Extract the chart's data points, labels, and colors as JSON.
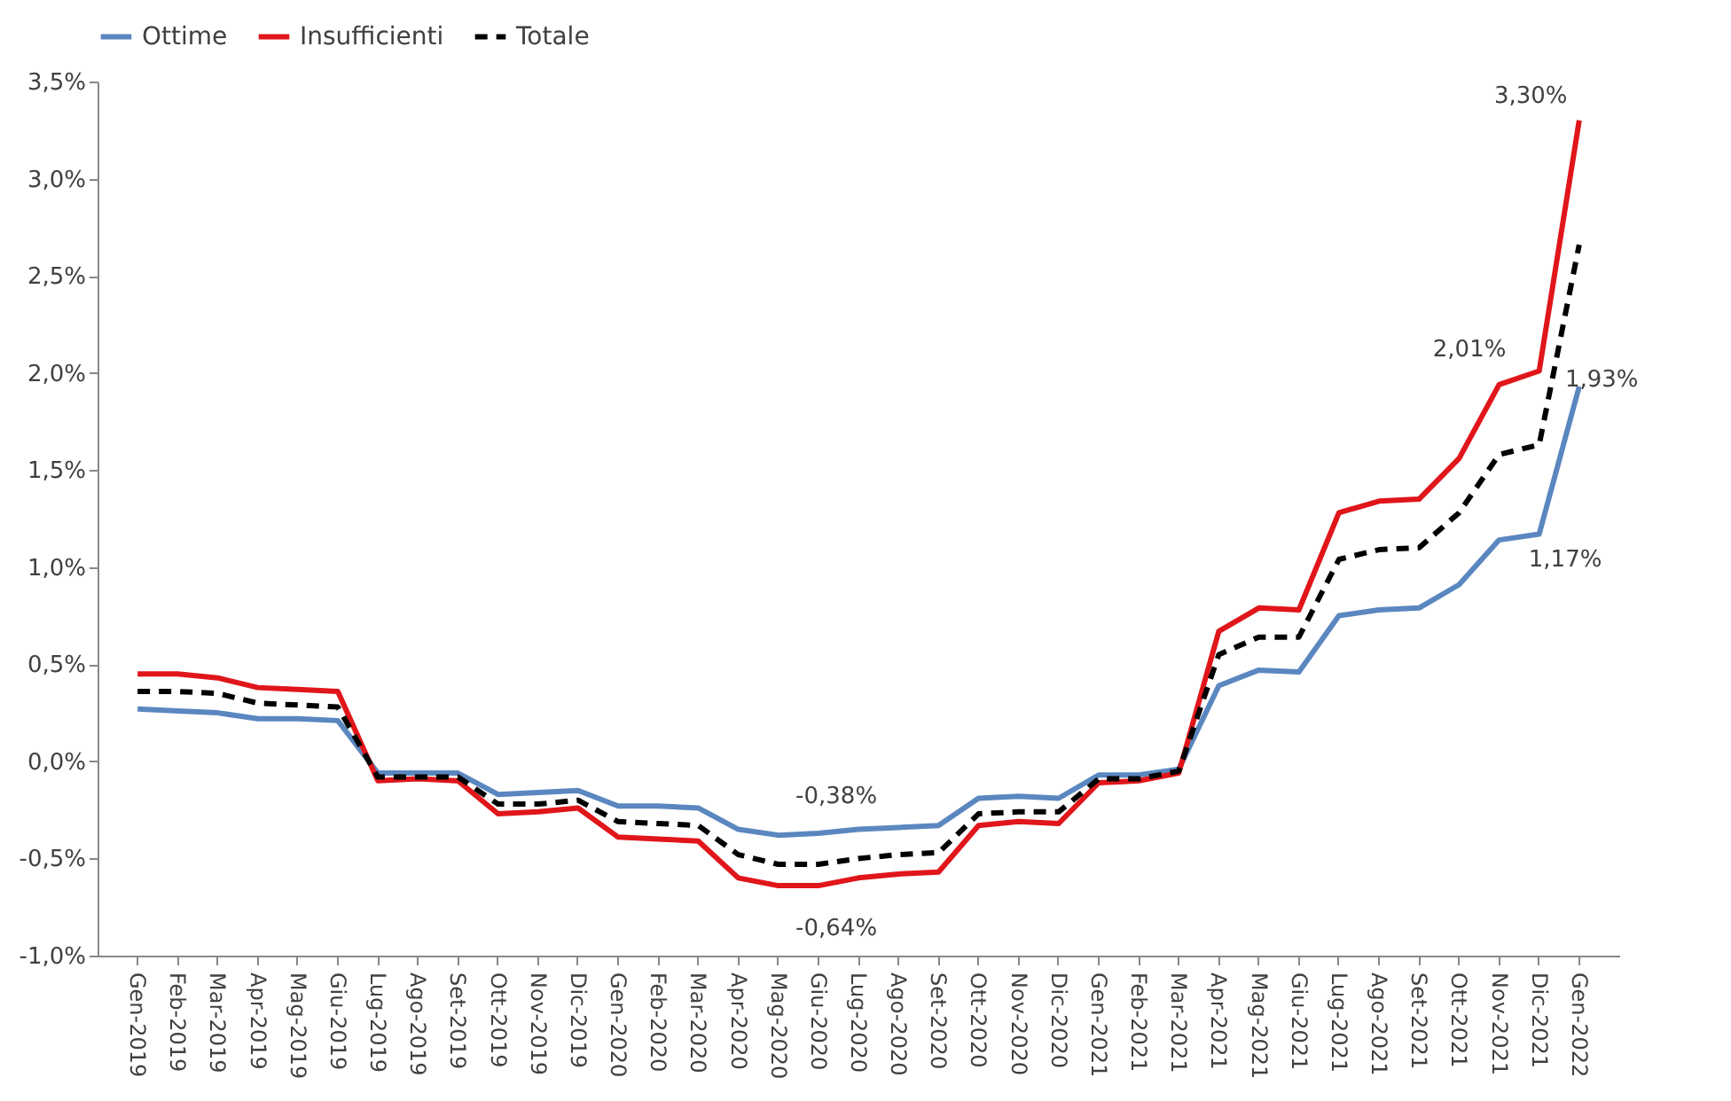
{
  "chart_data": {
    "type": "line",
    "legend": "top",
    "grid": false,
    "marker": "none",
    "categories": [
      "Gen-2019",
      "Feb-2019",
      "Mar-2019",
      "Apr-2019",
      "Mag-2019",
      "Giu-2019",
      "Lug-2019",
      "Ago-2019",
      "Set-2019",
      "Ott-2019",
      "Nov-2019",
      "Dic-2019",
      "Gen-2020",
      "Feb-2020",
      "Mar-2020",
      "Apr-2020",
      "Mag-2020",
      "Giu-2020",
      "Lug-2020",
      "Ago-2020",
      "Set-2020",
      "Ott-2020",
      "Nov-2020",
      "Dic-2020",
      "Gen-2021",
      "Feb-2021",
      "Mar-2021",
      "Apr-2021",
      "Mag-2021",
      "Giu-2021",
      "Lug-2021",
      "Ago-2021",
      "Set-2021",
      "Ott-2021",
      "Nov-2021",
      "Dic-2021",
      "Gen-2022"
    ],
    "ylim": [
      -1,
      3.5
    ],
    "yticks": [
      {
        "value": -1,
        "label": "-1,0%"
      },
      {
        "value": -0.5,
        "label": "-0,5%"
      },
      {
        "value": 0,
        "label": "0,0%"
      },
      {
        "value": 0.5,
        "label": "0,5%"
      },
      {
        "value": 1,
        "label": "1,0%"
      },
      {
        "value": 1.5,
        "label": "1,5%"
      },
      {
        "value": 2,
        "label": "2,0%"
      },
      {
        "value": 2.5,
        "label": "2,5%"
      },
      {
        "value": 3,
        "label": "3,0%"
      },
      {
        "value": 3.5,
        "label": "3,5%"
      }
    ],
    "series": [
      {
        "name": "Ottime",
        "color": "#5b87c0",
        "line_style": "solid",
        "values": [
          0.27,
          0.26,
          0.25,
          0.22,
          0.22,
          0.21,
          -0.06,
          -0.06,
          -0.06,
          -0.17,
          -0.16,
          -0.15,
          -0.23,
          -0.23,
          -0.24,
          -0.35,
          -0.38,
          -0.37,
          -0.35,
          -0.34,
          -0.33,
          -0.19,
          -0.18,
          -0.19,
          -0.07,
          -0.07,
          -0.04,
          0.39,
          0.47,
          0.46,
          0.75,
          0.78,
          0.79,
          0.91,
          1.14,
          1.17,
          1.93
        ],
        "value_labels": [
          null,
          null,
          null,
          null,
          null,
          null,
          null,
          null,
          null,
          null,
          null,
          null,
          null,
          null,
          null,
          null,
          "-0,38%",
          null,
          null,
          null,
          null,
          null,
          null,
          null,
          null,
          null,
          null,
          null,
          null,
          null,
          null,
          null,
          null,
          null,
          null,
          "1,17%",
          "1,93%"
        ]
      },
      {
        "name": "Insufficienti",
        "color": "#e0161b",
        "line_style": "solid",
        "values": [
          0.45,
          0.45,
          0.43,
          0.38,
          0.37,
          0.36,
          -0.1,
          -0.09,
          -0.1,
          -0.27,
          -0.26,
          -0.24,
          -0.39,
          -0.4,
          -0.41,
          -0.6,
          -0.64,
          -0.64,
          -0.6,
          -0.58,
          -0.57,
          -0.33,
          -0.31,
          -0.32,
          -0.11,
          -0.1,
          -0.06,
          0.67,
          0.79,
          0.78,
          1.28,
          1.34,
          1.35,
          1.56,
          1.94,
          2.01,
          3.3
        ],
        "value_labels": [
          null,
          null,
          null,
          null,
          null,
          null,
          null,
          null,
          null,
          null,
          null,
          null,
          null,
          null,
          null,
          null,
          "-0,64%",
          null,
          null,
          null,
          null,
          null,
          null,
          null,
          null,
          null,
          null,
          null,
          null,
          null,
          null,
          null,
          null,
          null,
          null,
          "2,01%",
          "3,30%"
        ]
      },
      {
        "name": "Totale",
        "color": "#000000",
        "line_style": "dashed",
        "values": [
          0.36,
          0.36,
          0.35,
          0.3,
          0.29,
          0.28,
          -0.08,
          -0.08,
          -0.08,
          -0.22,
          -0.22,
          -0.2,
          -0.31,
          -0.32,
          -0.33,
          -0.48,
          -0.53,
          -0.53,
          -0.5,
          -0.48,
          -0.47,
          -0.27,
          -0.26,
          -0.26,
          -0.09,
          -0.09,
          -0.05,
          0.55,
          0.64,
          0.64,
          1.04,
          1.09,
          1.1,
          1.28,
          1.58,
          1.63,
          2.66
        ]
      }
    ]
  }
}
